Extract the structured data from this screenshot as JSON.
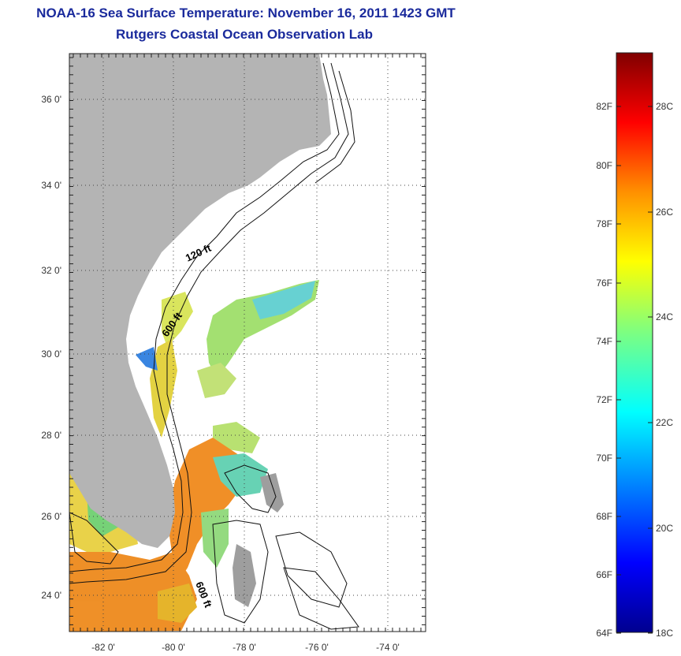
{
  "header": {
    "title": "NOAA-16 Sea Surface Temperature:  November 16, 2011 1423 GMT",
    "subtitle": "Rutgers Coastal Ocean Observation Lab"
  },
  "map": {
    "lat_ticks": [
      "36 0'",
      "34 0'",
      "32 0'",
      "30 0'",
      "28 0'",
      "26 0'",
      "24 0'"
    ],
    "lon_ticks": [
      "-82 0'",
      "-80 0'",
      "-78 0'",
      "-76 0'",
      "-74 0'"
    ],
    "contour_labels": [
      "120 ft",
      "600 ft",
      "600 ft"
    ],
    "land_color": "#b4b4b4"
  },
  "colorbar": {
    "f_ticks": [
      "82F",
      "80F",
      "78F",
      "76F",
      "74F",
      "72F",
      "70F",
      "68F",
      "66F",
      "64F"
    ],
    "c_ticks": [
      "28C",
      "26C",
      "24C",
      "22C",
      "20C",
      "18C"
    ],
    "colors": [
      "#00008f",
      "#0000ff",
      "#00b0ff",
      "#00ffff",
      "#7fff7f",
      "#ffff00",
      "#ff9000",
      "#ff0000",
      "#800000"
    ]
  }
}
